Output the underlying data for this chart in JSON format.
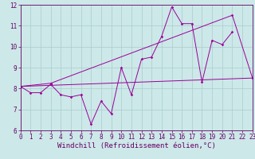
{
  "x": [
    0,
    1,
    2,
    3,
    4,
    5,
    6,
    7,
    8,
    9,
    10,
    11,
    12,
    13,
    14,
    15,
    16,
    17,
    18,
    19,
    20,
    21,
    22,
    23
  ],
  "line1": [
    8.1,
    7.8,
    7.8,
    8.2,
    7.7,
    7.6,
    7.7,
    6.3,
    7.4,
    6.8,
    9.0,
    7.7,
    9.4,
    9.5,
    10.5,
    11.9,
    11.1,
    11.1,
    8.3,
    10.3,
    10.1,
    10.7,
    null,
    8.5
  ],
  "line2_x": [
    0,
    3,
    21,
    23
  ],
  "line2_y": [
    8.1,
    8.25,
    11.5,
    8.5
  ],
  "line3_x": [
    0,
    23
  ],
  "line3_y": [
    8.1,
    8.5
  ],
  "ylim": [
    6,
    12
  ],
  "xlim": [
    0,
    23
  ],
  "yticks": [
    6,
    7,
    8,
    9,
    10,
    11,
    12
  ],
  "xticks": [
    0,
    1,
    2,
    3,
    4,
    5,
    6,
    7,
    8,
    9,
    10,
    11,
    12,
    13,
    14,
    15,
    16,
    17,
    18,
    19,
    20,
    21,
    22,
    23
  ],
  "xlabel": "Windchill (Refroidissement éolien,°C)",
  "line_color": "#990099",
  "bg_color": "#cce8e8",
  "grid_color": "#aacccc",
  "axis_color": "#660066",
  "tick_fontsize": 5.5,
  "xlabel_fontsize": 6.5
}
